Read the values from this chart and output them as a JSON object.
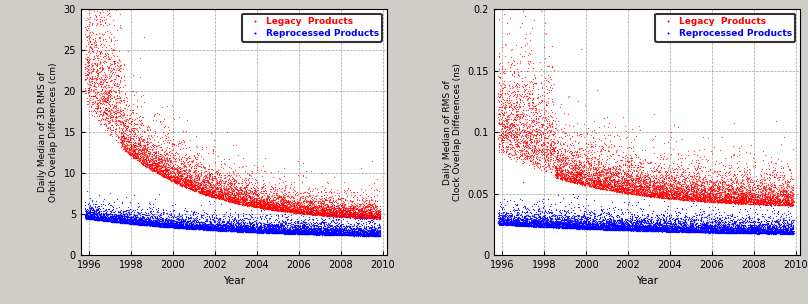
{
  "fig_width": 8.08,
  "fig_height": 3.04,
  "dpi": 100,
  "background_color": "#d0ccc8",
  "plot1": {
    "ylabel": "Daily Median of 3D RMS of\nOrbit Overlap Differences (cm)",
    "xlabel": "Year",
    "xlim": [
      1995.6,
      2010.2
    ],
    "ylim": [
      0,
      30
    ],
    "yticks": [
      0,
      5,
      10,
      15,
      20,
      25,
      30
    ],
    "xticks": [
      1996,
      1998,
      2000,
      2002,
      2004,
      2006,
      2008,
      2010
    ],
    "legend_labels": [
      "Legacy  Products",
      "Reprocessed Products"
    ],
    "red_n": 8000,
    "blue_n": 8000,
    "red_seed": 42,
    "blue_seed": 123,
    "start_year": 1995.8,
    "end_year": 2009.9
  },
  "plot2": {
    "ylabel": "Daily Median of RMS of\nClock Overlap Differences (ns)",
    "xlabel": "Year",
    "xlim": [
      1995.6,
      2010.2
    ],
    "ylim": [
      0,
      0.2
    ],
    "yticks": [
      0,
      0.05,
      0.1,
      0.15,
      0.2
    ],
    "xticks": [
      1996,
      1998,
      2000,
      2002,
      2004,
      2006,
      2008,
      2010
    ],
    "legend_labels": [
      "Legacy  Products",
      "Reprocessed Products"
    ],
    "red_n": 8000,
    "blue_n": 8000,
    "red_seed": 55,
    "blue_seed": 77,
    "start_year": 1995.8,
    "end_year": 2009.9
  }
}
